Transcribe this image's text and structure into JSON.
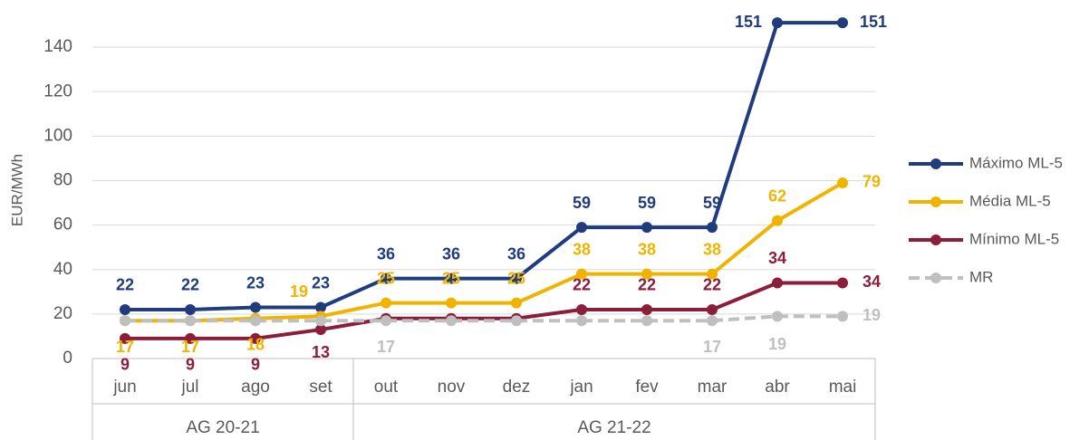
{
  "chart_data": {
    "type": "line",
    "y_label": "EUR/MWh",
    "categories": [
      "jun",
      "jul",
      "ago",
      "set",
      "out",
      "nov",
      "dez",
      "jan",
      "fev",
      "mar",
      "abr",
      "mai"
    ],
    "category_groups": [
      "AG 20-21",
      "AG 20-21",
      "AG 20-21",
      "AG 20-21",
      "AG 21-22",
      "AG 21-22",
      "AG 21-22",
      "AG 21-22",
      "AG 21-22",
      "AG 21-22",
      "AG 21-22",
      "AG 21-22"
    ],
    "ylim": [
      0,
      160
    ],
    "yticks": [
      0,
      20,
      40,
      60,
      80,
      100,
      120,
      140
    ],
    "grid": true,
    "legend": "right",
    "series": [
      {
        "name": "Máximo ML-5",
        "color": "#203c7c",
        "values": [
          22,
          22,
          23,
          23,
          36,
          36,
          36,
          59,
          59,
          59,
          151,
          151
        ],
        "value_labels": [
          "22",
          "22",
          "23",
          "23",
          "36",
          "36",
          "36",
          "59",
          "59",
          "59",
          "151",
          "151"
        ]
      },
      {
        "name": "Média ML-5",
        "color": "#f0b400",
        "values": [
          17,
          17,
          18,
          19,
          25,
          25,
          25,
          38,
          38,
          38,
          62,
          79
        ],
        "value_labels": [
          "17",
          "17",
          "18",
          "19",
          "25",
          "25",
          "25",
          "38",
          "38",
          "38",
          "62",
          "79"
        ]
      },
      {
        "name": "Mínimo ML-5",
        "color": "#8b1e3a",
        "values": [
          9,
          9,
          9,
          13,
          18,
          18,
          18,
          22,
          22,
          22,
          34,
          34
        ],
        "value_labels": [
          "9",
          "9",
          "9",
          "13",
          null,
          null,
          null,
          "22",
          "22",
          "22",
          "34",
          "34"
        ]
      },
      {
        "name": "MR",
        "color": "#bfbfbf",
        "dashed": true,
        "values": [
          17,
          17,
          17,
          17,
          17,
          17,
          17,
          17,
          17,
          17,
          19,
          19
        ],
        "value_labels": [
          null,
          null,
          null,
          null,
          "17",
          null,
          null,
          null,
          null,
          "17",
          "19",
          "19"
        ]
      }
    ]
  }
}
